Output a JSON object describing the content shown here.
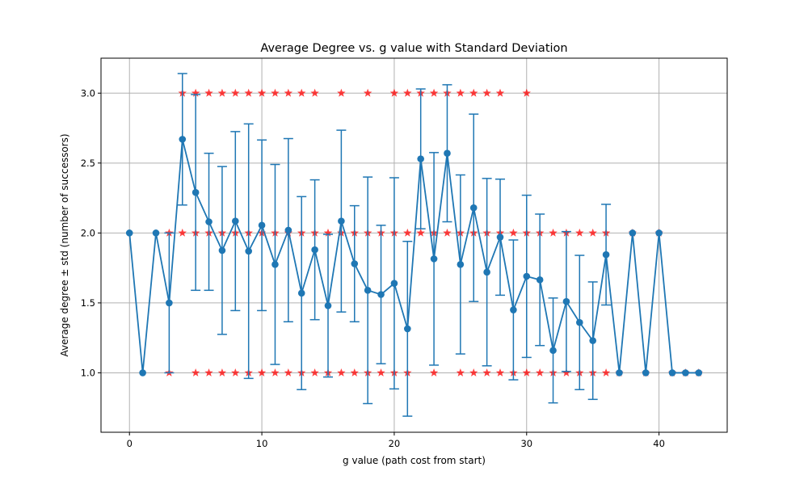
{
  "chart_data": {
    "type": "line",
    "title": "Average Degree vs. g value with Standard Deviation",
    "xlabel": "g value (path cost from start)",
    "ylabel": "Average degree ± std (number of successors)",
    "xlim": [
      -2.15,
      45.15
    ],
    "ylim": [
      0.575,
      3.25
    ],
    "xticks": [
      0,
      10,
      20,
      30,
      40
    ],
    "yticks": [
      1.0,
      1.5,
      2.0,
      2.5,
      3.0
    ],
    "ytick_labels": [
      "1.0",
      "1.5",
      "2.0",
      "2.5",
      "3.0"
    ],
    "grid": true,
    "colors": {
      "mean": "#1f77b4",
      "samples": "#ff0000"
    },
    "series": [
      {
        "x": [
          0,
          1,
          2,
          3,
          4,
          5,
          6,
          7,
          8,
          9,
          10,
          11,
          12,
          13,
          14,
          15,
          16,
          17,
          18,
          19,
          20,
          21,
          22,
          23,
          24,
          25,
          26,
          27,
          28,
          29,
          30,
          31,
          32,
          33,
          34,
          35,
          36,
          37,
          38,
          39,
          40,
          41,
          42,
          43
        ],
        "mean": [
          2.0,
          1.0,
          2.0,
          1.5,
          2.67,
          2.29,
          2.08,
          1.875,
          2.085,
          1.87,
          2.055,
          1.775,
          2.02,
          1.57,
          1.88,
          1.48,
          2.085,
          1.78,
          1.59,
          1.56,
          1.64,
          1.315,
          2.53,
          1.815,
          2.57,
          1.775,
          2.18,
          1.72,
          1.97,
          1.45,
          1.69,
          1.665,
          1.16,
          1.51,
          1.36,
          1.23,
          1.845,
          1.0,
          2.0,
          1.0,
          2.0,
          1.0,
          1.0,
          1.0
        ],
        "std": [
          0,
          0,
          0,
          0.5,
          0.47,
          0.7,
          0.49,
          0.6,
          0.64,
          0.91,
          0.61,
          0.715,
          0.655,
          0.69,
          0.5,
          0.51,
          0.65,
          0.415,
          0.81,
          0.495,
          0.755,
          0.625,
          0.5,
          0.76,
          0.49,
          0.64,
          0.67,
          0.67,
          0.415,
          0.5,
          0.58,
          0.47,
          0.375,
          0.5,
          0.48,
          0.42,
          0.36,
          0,
          0,
          0,
          0,
          0,
          0,
          0
        ]
      }
    ],
    "samples": {
      "marker": "star",
      "points": [
        [
          3,
          2
        ],
        [
          3,
          1
        ],
        [
          4,
          3
        ],
        [
          4,
          2
        ],
        [
          5,
          3
        ],
        [
          5,
          2
        ],
        [
          5,
          1
        ],
        [
          6,
          3
        ],
        [
          6,
          2
        ],
        [
          6,
          1
        ],
        [
          7,
          3
        ],
        [
          7,
          2
        ],
        [
          7,
          1
        ],
        [
          8,
          3
        ],
        [
          8,
          2
        ],
        [
          8,
          1
        ],
        [
          9,
          3
        ],
        [
          9,
          2
        ],
        [
          9,
          1
        ],
        [
          10,
          3
        ],
        [
          10,
          2
        ],
        [
          10,
          1
        ],
        [
          11,
          3
        ],
        [
          11,
          2
        ],
        [
          11,
          1
        ],
        [
          12,
          3
        ],
        [
          12,
          2
        ],
        [
          12,
          1
        ],
        [
          13,
          3
        ],
        [
          13,
          2
        ],
        [
          13,
          1
        ],
        [
          14,
          3
        ],
        [
          14,
          2
        ],
        [
          14,
          1
        ],
        [
          15,
          2
        ],
        [
          15,
          1
        ],
        [
          16,
          3
        ],
        [
          16,
          2
        ],
        [
          16,
          1
        ],
        [
          17,
          2
        ],
        [
          17,
          1
        ],
        [
          18,
          3
        ],
        [
          18,
          2
        ],
        [
          18,
          1
        ],
        [
          19,
          2
        ],
        [
          19,
          1
        ],
        [
          20,
          3
        ],
        [
          20,
          2
        ],
        [
          20,
          1
        ],
        [
          21,
          3
        ],
        [
          21,
          2
        ],
        [
          21,
          1
        ],
        [
          22,
          3
        ],
        [
          22,
          2
        ],
        [
          23,
          3
        ],
        [
          23,
          2
        ],
        [
          23,
          1
        ],
        [
          24,
          3
        ],
        [
          24,
          2
        ],
        [
          25,
          3
        ],
        [
          25,
          2
        ],
        [
          25,
          1
        ],
        [
          26,
          3
        ],
        [
          26,
          2
        ],
        [
          26,
          1
        ],
        [
          27,
          3
        ],
        [
          27,
          2
        ],
        [
          27,
          1
        ],
        [
          28,
          3
        ],
        [
          28,
          2
        ],
        [
          28,
          1
        ],
        [
          29,
          2
        ],
        [
          29,
          1
        ],
        [
          30,
          3
        ],
        [
          30,
          2
        ],
        [
          30,
          1
        ],
        [
          31,
          2
        ],
        [
          31,
          1
        ],
        [
          32,
          2
        ],
        [
          32,
          1
        ],
        [
          33,
          2
        ],
        [
          33,
          1
        ],
        [
          34,
          2
        ],
        [
          34,
          1
        ],
        [
          35,
          2
        ],
        [
          35,
          1
        ],
        [
          36,
          2
        ],
        [
          36,
          1
        ],
        [
          37,
          1
        ],
        [
          38,
          2
        ],
        [
          39,
          1
        ],
        [
          40,
          2
        ],
        [
          41,
          1
        ],
        [
          42,
          1
        ],
        [
          43,
          1
        ]
      ]
    }
  }
}
